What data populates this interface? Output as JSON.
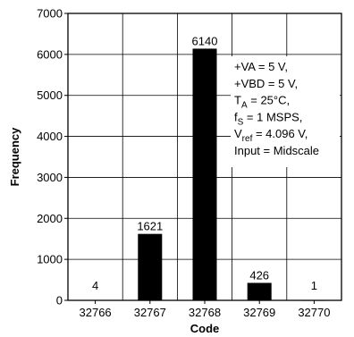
{
  "chart_data": {
    "type": "bar",
    "categories": [
      "32766",
      "32767",
      "32768",
      "32769",
      "32770"
    ],
    "values": [
      4,
      1621,
      6140,
      426,
      1
    ],
    "data_labels": [
      "4",
      "1621",
      "6140",
      "426",
      "1"
    ],
    "xlabel": "Code",
    "ylabel": "Frequency",
    "ylim": [
      0,
      7000
    ],
    "yticks": [
      "0",
      "1000",
      "2000",
      "3000",
      "4000",
      "5000",
      "6000",
      "7000"
    ],
    "grid": true,
    "bar_color": "#000000",
    "annotation": [
      {
        "main": "+VA = 5 V,"
      },
      {
        "main": "+VBD = 5 V,"
      },
      {
        "main": "T",
        "sub": "A",
        "rest": " = 25°C,"
      },
      {
        "main": "f",
        "sub": "S",
        "rest": " = 1 MSPS,"
      },
      {
        "main": "V",
        "sub": "ref",
        "rest": " = 4.096 V,"
      },
      {
        "main": "Input = Midscale"
      }
    ]
  }
}
